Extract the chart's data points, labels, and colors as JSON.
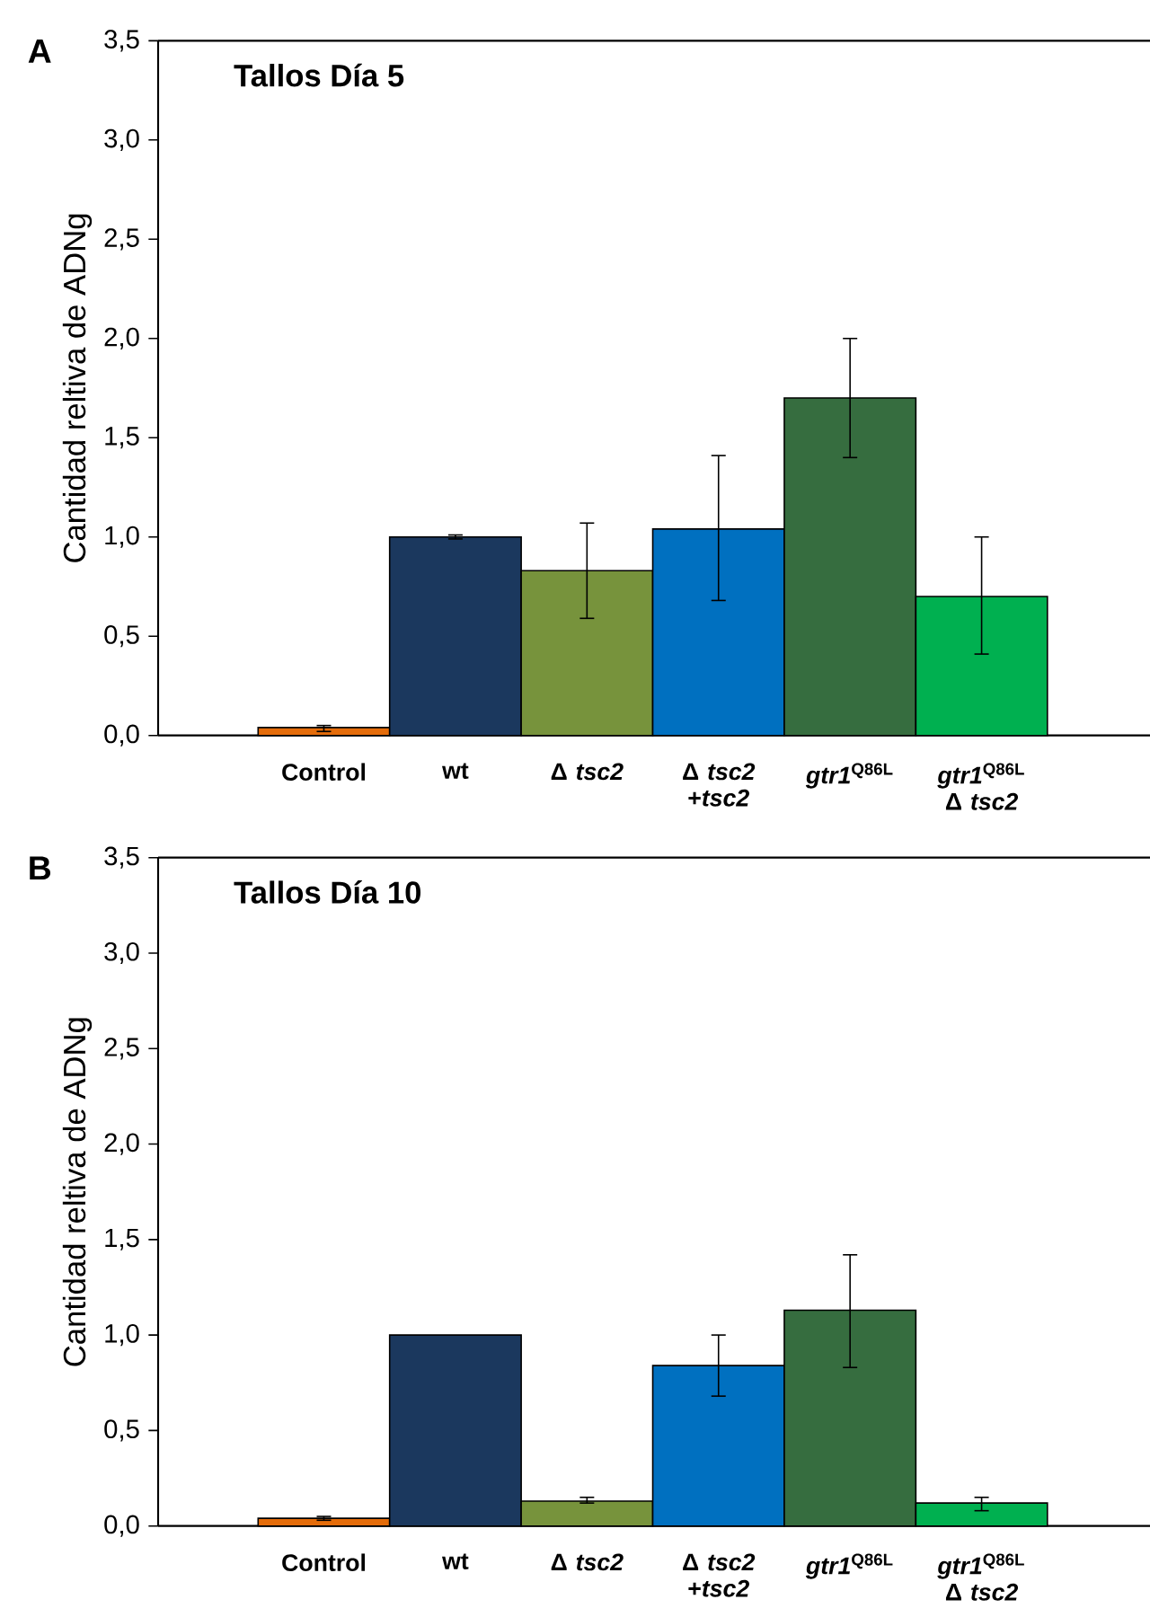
{
  "chart_data": [
    {
      "type": "bar",
      "title": "Tallos Día 5",
      "ylabel": "Cantidad reltiva de ADNg",
      "annotations": [
        "A"
      ],
      "categories": [
        "Control",
        "wt",
        "Δ *tsc2*",
        "Δ *tsc2* +*tsc2*",
        "*gtr1*$^{Q86L}$",
        "*gtr1*$^{Q86L}$ Δ *tsc2*"
      ],
      "values": [
        0.04,
        1.0,
        0.83,
        1.04,
        1.7,
        0.7
      ],
      "errors": [
        [
          0.02,
          0.05
        ],
        0.01,
        [
          0.59,
          1.07
        ],
        [
          0.68,
          1.41
        ],
        [
          1.4,
          2.0
        ],
        [
          0.41,
          1.0
        ]
      ],
      "colors": [
        "#e46c0a",
        "#1b385e",
        "#77933c",
        "#0070c0",
        "#366d3f",
        "#00b050"
      ],
      "ylim": [
        0,
        3.5
      ],
      "yticks": [
        {
          "value": 0,
          "label": "0,0"
        },
        {
          "value": 0.5,
          "label": "0,5"
        },
        {
          "value": 1,
          "label": "1,0"
        },
        {
          "value": 1.5,
          "label": "1,5"
        },
        {
          "value": 2,
          "label": "2,0"
        },
        {
          "value": 2.5,
          "label": "2,5"
        },
        {
          "value": 3,
          "label": "3,0"
        },
        {
          "value": 3.5,
          "label": "3,5"
        }
      ]
    },
    {
      "type": "bar",
      "title": "Tallos Día 10",
      "ylabel": "Cantidad reltiva de ADNg",
      "annotations": [
        "B"
      ],
      "categories": [
        "Control",
        "wt",
        "Δ *tsc2*",
        "Δ *tsc2* +*tsc2*",
        "*gtr1*$^{Q86L}$",
        "*gtr1*$^{Q86L}$ Δ *tsc2*"
      ],
      "values": [
        0.04,
        1.0,
        0.13,
        0.84,
        1.13,
        0.12
      ],
      "errors": [
        [
          0.03,
          0.05
        ],
        null,
        [
          0.12,
          0.15
        ],
        [
          0.68,
          1.0
        ],
        [
          0.83,
          1.42
        ],
        [
          0.08,
          0.15
        ]
      ],
      "colors": [
        "#e46c0a",
        "#1b385e",
        "#77933c",
        "#0070c0",
        "#366d3f",
        "#00b050"
      ],
      "ylim": [
        0,
        3.5
      ],
      "yticks": [
        {
          "value": 0,
          "label": "0,0"
        },
        {
          "value": 0.5,
          "label": "0,5"
        },
        {
          "value": 1,
          "label": "1,0"
        },
        {
          "value": 1.5,
          "label": "1,5"
        },
        {
          "value": 2,
          "label": "2,0"
        },
        {
          "value": 2.5,
          "label": "2,5"
        },
        {
          "value": 3,
          "label": "3,0"
        },
        {
          "value": 3.5,
          "label": "3,5"
        }
      ]
    }
  ]
}
